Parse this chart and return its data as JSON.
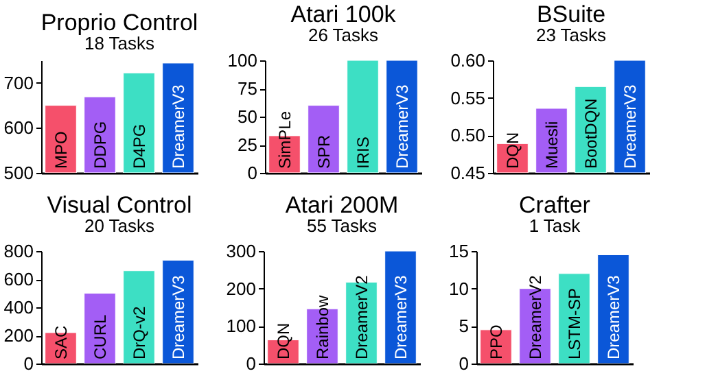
{
  "chart_data": [
    {
      "type": "bar",
      "title": "Proprio Control",
      "subtitle": "18 Tasks",
      "categories": [
        "MPO",
        "DDPG",
        "D4PG",
        "DreamerV3"
      ],
      "values": [
        650,
        669,
        722,
        744
      ],
      "colors": [
        "#f5506b",
        "#a35ef5",
        "#3ddfc4",
        "#0b57d8"
      ],
      "ylim": [
        500,
        750
      ],
      "yticks": [
        500,
        600,
        700
      ]
    },
    {
      "type": "bar",
      "title": "Atari 100k",
      "subtitle": "26 Tasks",
      "categories": [
        "SimPLe",
        "SPR",
        "IRIS",
        "DreamerV3"
      ],
      "values": [
        33,
        60,
        100,
        100
      ],
      "colors": [
        "#f5506b",
        "#a35ef5",
        "#3ddfc4",
        "#0b57d8"
      ],
      "ylim": [
        0,
        100
      ],
      "yticks": [
        0,
        25,
        50,
        75,
        100
      ]
    },
    {
      "type": "bar",
      "title": "BSuite",
      "subtitle": "23 Tasks",
      "categories": [
        "DQN",
        "Muesli",
        "BootDQN",
        "DreamerV3"
      ],
      "values": [
        0.489,
        0.536,
        0.565,
        0.6
      ],
      "colors": [
        "#f5506b",
        "#a35ef5",
        "#3ddfc4",
        "#0b57d8"
      ],
      "ylim": [
        0.45,
        0.6
      ],
      "yticks": [
        0.45,
        {
          "value": 0.5,
          "label": "0.50"
        },
        0.55,
        {
          "value": 0.6,
          "label": "0.60"
        }
      ]
    },
    {
      "type": "bar",
      "title": "Visual Control",
      "subtitle": "20 Tasks",
      "categories": [
        "SAC",
        "CURL",
        "DrQ-v2",
        "DreamerV3"
      ],
      "values": [
        220,
        500,
        660,
        735
      ],
      "colors": [
        "#f5506b",
        "#a35ef5",
        "#3ddfc4",
        "#0b57d8"
      ],
      "ylim": [
        0,
        800
      ],
      "yticks": [
        0,
        200,
        400,
        600,
        800
      ]
    },
    {
      "type": "bar",
      "title": "Atari 200M",
      "subtitle": "55 Tasks",
      "categories": [
        "DQN",
        "Rainbow",
        "DreamerV2",
        "DreamerV3"
      ],
      "values": [
        63,
        146,
        217,
        300
      ],
      "colors": [
        "#f5506b",
        "#a35ef5",
        "#3ddfc4",
        "#0b57d8"
      ],
      "ylim": [
        0,
        300
      ],
      "yticks": [
        0,
        100,
        200,
        300
      ]
    },
    {
      "type": "bar",
      "title": "Crafter",
      "subtitle": "1 Task",
      "categories": [
        "PPO",
        "DreamerV2",
        "LSTM-SP",
        "DreamerV3"
      ],
      "values": [
        4.5,
        10,
        12,
        14.5
      ],
      "colors": [
        "#f5506b",
        "#a35ef5",
        "#3ddfc4",
        "#0b57d8"
      ],
      "ylim": [
        0,
        15
      ],
      "yticks": [
        0,
        5,
        10,
        15
      ]
    }
  ]
}
